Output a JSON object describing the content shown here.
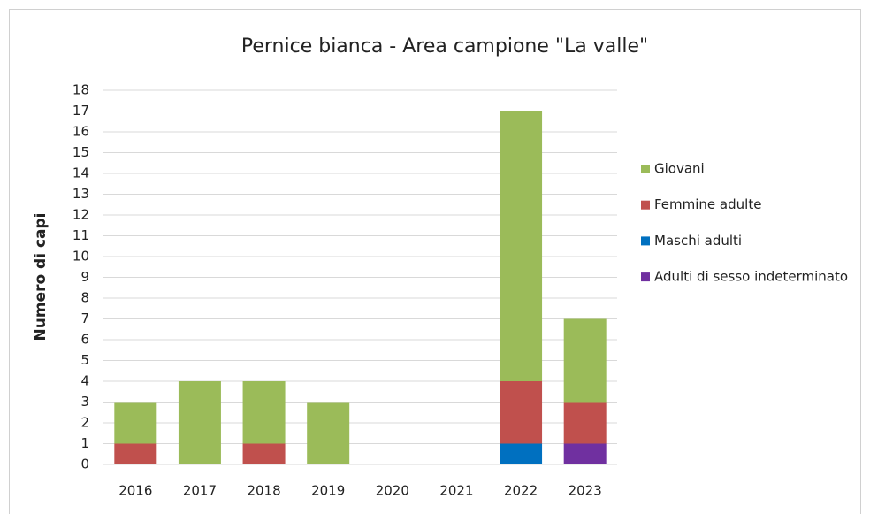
{
  "chart_data": {
    "type": "stacked_bar",
    "title": "Pernice bianca - Area campione \"La valle\"",
    "y_label": "Numero di capi",
    "categories": [
      "2016",
      "2017",
      "2018",
      "2019",
      "2020",
      "2021",
      "2022",
      "2023"
    ],
    "series": [
      {
        "name": "Adulti di sesso indeterminato",
        "color": "#7030a0",
        "values": [
          0,
          0,
          0,
          0,
          0,
          0,
          0,
          1
        ]
      },
      {
        "name": "Maschi adulti",
        "color": "#0070c0",
        "values": [
          0,
          0,
          0,
          0,
          0,
          0,
          1,
          0
        ]
      },
      {
        "name": "Femmine adulte",
        "color": "#c0504d",
        "values": [
          1,
          0,
          1,
          0,
          0,
          0,
          3,
          2
        ]
      },
      {
        "name": "Giovani",
        "color": "#9bbb59",
        "values": [
          2,
          4,
          3,
          3,
          0,
          0,
          13,
          4
        ]
      }
    ],
    "ylim": [
      0,
      18
    ],
    "yticks": [
      0,
      1,
      2,
      3,
      4,
      5,
      6,
      7,
      8,
      9,
      10,
      11,
      12,
      13,
      14,
      15,
      16,
      17,
      18
    ],
    "grid": true,
    "legend": "right"
  }
}
